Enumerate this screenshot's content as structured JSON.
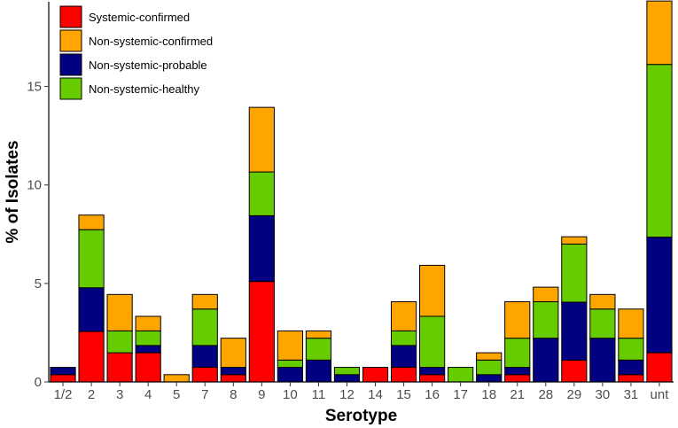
{
  "chart_data": {
    "type": "bar",
    "stacked": true,
    "title": "",
    "xlabel": "Serotype",
    "ylabel": "% of Isolates",
    "ylim": [
      0,
      19.3
    ],
    "yticks": [
      0,
      5,
      10,
      15
    ],
    "legend_position": "top-left",
    "categories": [
      "1/2",
      "2",
      "3",
      "4",
      "5",
      "7",
      "8",
      "9",
      "10",
      "11",
      "12",
      "14",
      "15",
      "16",
      "17",
      "18",
      "21",
      "28",
      "29",
      "30",
      "31",
      "unt"
    ],
    "series": [
      {
        "name": "Systemic-confirmed",
        "color": "#ff0000",
        "values": [
          0.37,
          2.56,
          1.48,
          1.48,
          0,
          0.74,
          0.37,
          5.1,
          0,
          0,
          0,
          0.74,
          0.74,
          0.37,
          0,
          0,
          0.37,
          0,
          1.1,
          0,
          0.37,
          1.48
        ]
      },
      {
        "name": "Non-systemic-probable",
        "color": "#000080",
        "values": [
          0.37,
          2.22,
          0,
          0.37,
          0,
          1.11,
          0.37,
          3.34,
          0.74,
          1.11,
          0.37,
          0,
          1.11,
          0.37,
          0,
          0.37,
          0.37,
          2.22,
          2.95,
          2.22,
          0.74,
          5.87
        ]
      },
      {
        "name": "Non-systemic-healthy",
        "color": "#66cc00",
        "values": [
          0,
          2.95,
          1.11,
          0.74,
          0,
          1.85,
          0,
          2.22,
          0.37,
          1.11,
          0.37,
          0,
          0.74,
          2.59,
          0.74,
          0.74,
          1.48,
          1.85,
          2.95,
          1.48,
          1.11,
          8.77
        ]
      },
      {
        "name": "Non-systemic-confirmed",
        "color": "#ffa500",
        "values": [
          0,
          0.74,
          1.85,
          0.74,
          0.37,
          0.74,
          1.48,
          3.28,
          1.48,
          0.37,
          0,
          0,
          1.48,
          2.59,
          0,
          0.37,
          1.85,
          0.74,
          0.37,
          0.74,
          1.48,
          3.22
        ]
      }
    ],
    "legend": [
      {
        "name": "Systemic-confirmed",
        "color": "#ff0000"
      },
      {
        "name": "Non-systemic-confirmed",
        "color": "#ffa500"
      },
      {
        "name": "Non-systemic-probable",
        "color": "#000080"
      },
      {
        "name": "Non-systemic-healthy",
        "color": "#66cc00"
      }
    ]
  }
}
